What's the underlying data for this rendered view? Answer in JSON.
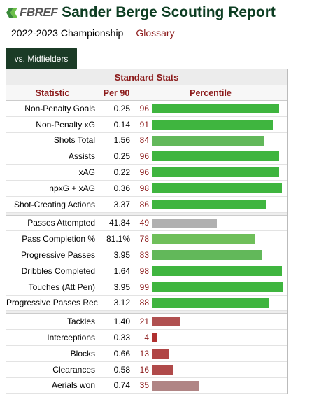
{
  "header": {
    "logo_text": "FBREF",
    "logo_icon": "fbref-hexagon-icon",
    "title": "Sander Berge Scouting Report"
  },
  "subheader": {
    "season": "2022-2023 Championship",
    "glossary": "Glossary"
  },
  "tabs": [
    {
      "label": "vs. Midfielders",
      "active": true
    }
  ],
  "table": {
    "section_title": "Standard Stats",
    "columns": {
      "statistic": "Statistic",
      "per90": "Per 90",
      "percentile": "Percentile"
    },
    "colors": {
      "high": "#3fb53f",
      "mid": "#6fbf5a",
      "neutral": "#b0b0b0",
      "low": "#b05050",
      "low_light": "#b08585"
    },
    "groups": [
      [
        {
          "stat": "Non-Penalty Goals",
          "per90": "0.25",
          "percentile": 96,
          "color": "#3fb53f"
        },
        {
          "stat": "Non-Penalty xG",
          "per90": "0.14",
          "percentile": 91,
          "color": "#3fb53f"
        },
        {
          "stat": "Shots Total",
          "per90": "1.56",
          "percentile": 84,
          "color": "#62b85a"
        },
        {
          "stat": "Assists",
          "per90": "0.25",
          "percentile": 96,
          "color": "#3fb53f"
        },
        {
          "stat": "xAG",
          "per90": "0.22",
          "percentile": 96,
          "color": "#3fb53f"
        },
        {
          "stat": "npxG + xAG",
          "per90": "0.36",
          "percentile": 98,
          "color": "#3fb53f"
        },
        {
          "stat": "Shot-Creating Actions",
          "per90": "3.37",
          "percentile": 86,
          "color": "#3fb53f"
        }
      ],
      [
        {
          "stat": "Passes Attempted",
          "per90": "41.84",
          "percentile": 49,
          "color": "#b0b0b0"
        },
        {
          "stat": "Pass Completion %",
          "per90": "81.1%",
          "percentile": 78,
          "color": "#6fbf5a"
        },
        {
          "stat": "Progressive Passes",
          "per90": "3.95",
          "percentile": 83,
          "color": "#62b85a"
        },
        {
          "stat": "Dribbles Completed",
          "per90": "1.64",
          "percentile": 98,
          "color": "#3fb53f"
        },
        {
          "stat": "Touches (Att Pen)",
          "per90": "3.95",
          "percentile": 99,
          "color": "#3fb53f"
        },
        {
          "stat": "Progressive Passes Rec",
          "per90": "3.12",
          "percentile": 88,
          "color": "#3fb53f"
        }
      ],
      [
        {
          "stat": "Tackles",
          "per90": "1.40",
          "percentile": 21,
          "color": "#b05050"
        },
        {
          "stat": "Interceptions",
          "per90": "0.33",
          "percentile": 4,
          "color": "#b03030"
        },
        {
          "stat": "Blocks",
          "per90": "0.66",
          "percentile": 13,
          "color": "#b04545"
        },
        {
          "stat": "Clearances",
          "per90": "0.58",
          "percentile": 16,
          "color": "#b04a4a"
        },
        {
          "stat": "Aerials won",
          "per90": "0.74",
          "percentile": 35,
          "color": "#b08585"
        }
      ]
    ]
  }
}
